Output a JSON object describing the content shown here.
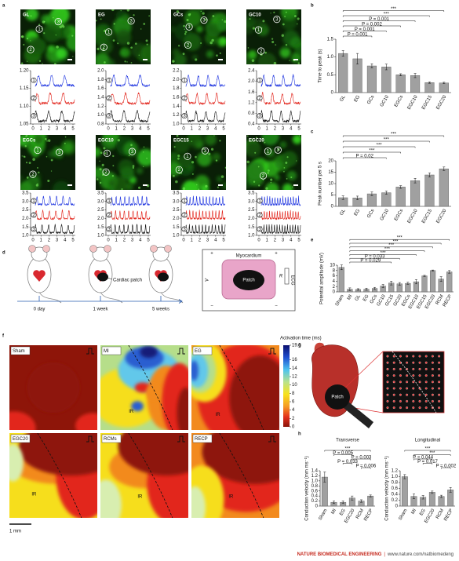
{
  "panel_letters": [
    "a",
    "b",
    "c",
    "d",
    "e",
    "f",
    "g",
    "h"
  ],
  "panel_a": {
    "images": [
      "GL",
      "EG",
      "GCs",
      "GC10",
      "EGCs",
      "EGC10",
      "EGC15",
      "EGC20"
    ],
    "markers": [
      "1",
      "2",
      "3"
    ],
    "trace_yticks": [
      [
        "1.20",
        "1.15",
        "1.10",
        "1.05"
      ],
      [
        "2.0",
        "1.8",
        "1.6",
        "1.4",
        "1.2",
        "1.0",
        "0.8"
      ],
      [
        "2.2",
        "2.0",
        "1.8",
        "1.6",
        "1.4",
        "1.2",
        "1.0"
      ],
      [
        "2.4",
        "2.0",
        "1.6",
        "1.2",
        "0.8",
        "0.4"
      ],
      [
        "3.5",
        "3.0",
        "2.5",
        "2.0",
        "1.5",
        "1.0"
      ],
      [
        "3.5",
        "3.0",
        "2.5",
        "2.0",
        "1.5",
        "1.0"
      ],
      [
        "3.5",
        "3.0",
        "2.5",
        "2.0",
        "1.5",
        "1.0"
      ],
      [
        "3.5",
        "3.0",
        "2.5",
        "2.0",
        "1.5",
        "1.0"
      ]
    ],
    "trace_xticks": [
      "0",
      "1",
      "2",
      "3",
      "4",
      "5"
    ]
  },
  "chart_data": [
    {
      "type": "bar",
      "ylabel": "Time to peak (s)",
      "categories": [
        "GL",
        "EG",
        "GCs",
        "GC10",
        "EGCs",
        "EGC10",
        "EGC15",
        "EGC20"
      ],
      "values": [
        1.1,
        0.95,
        0.75,
        0.72,
        0.5,
        0.48,
        0.28,
        0.27
      ],
      "errors": [
        0.08,
        0.15,
        0.06,
        0.08,
        0.03,
        0.06,
        0.02,
        0.02
      ],
      "color": "#a0a0a0",
      "ylim": [
        0,
        1.5
      ],
      "yticks": [
        0,
        0.5,
        {
          "value": 1,
          "label": "1.0"
        },
        1.5
      ],
      "annotations": [
        "***",
        "***",
        "P = 0.001",
        "P = 0.002",
        "P = 0.001",
        "P = 0.001"
      ]
    },
    {
      "type": "bar",
      "ylabel": "Peak number per 5 s",
      "categories": [
        "GL",
        "EG",
        "GCs",
        "GC10",
        "EGCs",
        "EGC10",
        "EGC15",
        "EGC20"
      ],
      "values": [
        3.8,
        3.7,
        5.5,
        6.0,
        8.5,
        11.3,
        13.8,
        16.5
      ],
      "errors": [
        0.8,
        0.8,
        0.8,
        0.7,
        0.6,
        1.0,
        0.9,
        0.8
      ],
      "color": "#a0a0a0",
      "ylim": [
        0,
        20
      ],
      "yticks": [
        0,
        5,
        10,
        15,
        20
      ],
      "annotations": [
        "***",
        "***",
        "***",
        "***",
        "P = 0.02"
      ]
    },
    {
      "type": "bar",
      "ylabel": "Potential amplitude (mV)",
      "categories": [
        "Sham",
        "MI",
        "GL",
        "EG",
        "GCs",
        "GC10",
        "GC15",
        "GC20",
        "EGCs",
        "EGC10",
        "EGC15",
        "EGC20",
        "RCM",
        "RECP"
      ],
      "values": [
        9.2,
        1.0,
        0.9,
        1.0,
        1.3,
        2.2,
        3.3,
        3.0,
        3.2,
        3.8,
        6.0,
        8.0,
        4.8,
        7.5
      ],
      "errors": [
        0.9,
        0.5,
        0.3,
        0.4,
        0.4,
        0.6,
        0.7,
        0.5,
        0.4,
        0.8,
        0.2,
        0.2,
        0.9,
        0.5
      ],
      "color": "#a0a0a0",
      "ylim": [
        0,
        10
      ],
      "yticks": [
        0,
        2,
        4,
        6,
        8,
        10
      ],
      "annotations": [
        "***",
        "***",
        "***",
        "***",
        "***",
        "P = 0.033",
        "P = 0.029"
      ]
    },
    {
      "type": "bar",
      "title": "Transverse",
      "ylabel": "Conduction velocity (mm ms⁻¹)",
      "categories": [
        "Sham",
        "MI",
        "EG",
        "EGC20",
        "RCM",
        "RECP"
      ],
      "values": [
        1.15,
        0.15,
        0.15,
        0.32,
        0.2,
        0.4
      ],
      "errors": [
        0.2,
        0.05,
        0.05,
        0.08,
        0.05,
        0.04
      ],
      "color": "#a0a0a0",
      "ylim": [
        0,
        1.4
      ],
      "yticks": [
        0,
        0.2,
        0.4,
        0.6,
        0.8,
        {
          "value": 1,
          "label": "1.0"
        },
        1.2,
        1.4
      ],
      "annotations": [
        "***",
        "P = 0.005",
        "P = 0.003",
        "P = 0.033",
        "P = 0.006"
      ]
    },
    {
      "type": "bar",
      "title": "Longitudinal",
      "ylabel": "Conduction velocity (mm ms⁻¹)",
      "categories": [
        "Sham",
        "MI",
        "EG",
        "EGC20",
        "RCM",
        "RECP"
      ],
      "values": [
        1.0,
        0.33,
        0.3,
        0.47,
        0.33,
        0.55
      ],
      "errors": [
        0.07,
        0.08,
        0.06,
        0.04,
        0.04,
        0.08
      ],
      "color": "#a0a0a0",
      "ylim": [
        0,
        1.2
      ],
      "yticks": [
        0,
        0.2,
        0.4,
        0.6,
        0.8,
        {
          "value": 1,
          "label": "1.0"
        },
        1.2
      ],
      "annotations": [
        "***",
        "***",
        "P = 0.044",
        "P = 0.017",
        "P = 0.002"
      ]
    }
  ],
  "panel_d": {
    "timeline": [
      "0 day",
      "1 week",
      "5 weeks"
    ],
    "patch_label": "Cardiac patch",
    "schematic": {
      "tissue": "Myocardium",
      "patch": "Patch",
      "voltage": "V",
      "resistor": "R",
      "ecg": "ECG",
      "plus": "+",
      "minus": "−"
    }
  },
  "panel_f": {
    "maps": [
      "Sham",
      "MI",
      "EG",
      "EGC20",
      "RCMs",
      "RECP"
    ],
    "region": "IR",
    "colorbar": {
      "title": "Activation time (ms)",
      "ticks": [
        19.5,
        16,
        14,
        12,
        10,
        8,
        6,
        4,
        2,
        0
      ]
    },
    "scale": "1 mm"
  },
  "panel_g": {
    "label": "Patch"
  },
  "footer": {
    "journal": "NATURE BIOMEDICAL ENGINEERING",
    "separator": "|",
    "url": "www.nature.com/natbiomedeng"
  }
}
